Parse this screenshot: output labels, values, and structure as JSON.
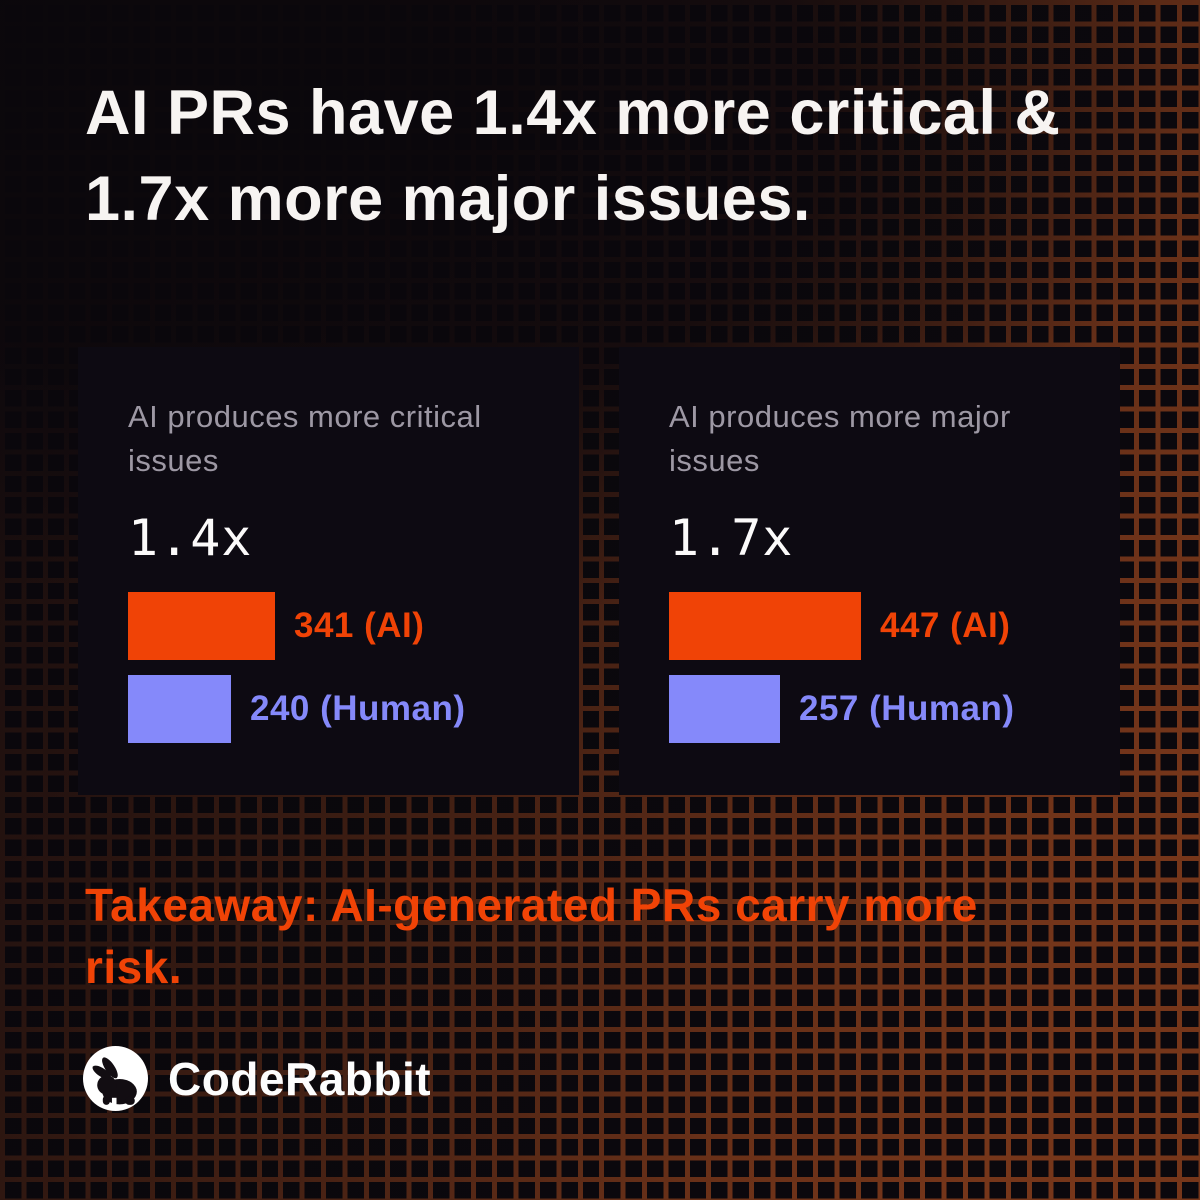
{
  "header": {
    "title": "AI PRs have 1.4x more critical & 1.7x more major issues."
  },
  "chart_data": [
    {
      "type": "bar",
      "orientation": "horizontal",
      "title": "AI produces more critical issues",
      "multiplier": "1.4x",
      "categories": [
        "AI",
        "Human"
      ],
      "values": [
        341,
        240
      ],
      "labels": [
        "341 (AI)",
        "240 (Human)"
      ],
      "series_colors": {
        "AI": "#f04306",
        "Human": "#8589fa"
      },
      "axis": "none",
      "legend": "inline-right"
    },
    {
      "type": "bar",
      "orientation": "horizontal",
      "title": "AI produces more major issues",
      "multiplier": "1.7x",
      "categories": [
        "AI",
        "Human"
      ],
      "values": [
        447,
        257
      ],
      "labels": [
        "447 (AI)",
        "257 (Human)"
      ],
      "series_colors": {
        "AI": "#f04306",
        "Human": "#8589fa"
      },
      "axis": "none",
      "legend": "inline-right"
    }
  ],
  "footer": {
    "takeaway": "Takeaway: AI-generated PRs carry more risk.",
    "brand": "CodeRabbit"
  },
  "theme": {
    "background": "#0b080d",
    "grid_line": "#76361a",
    "card_background": "#0d0a12",
    "title_color": "#f7f4f2",
    "muted_label_color": "#9d98a4",
    "accent_ai": "#f04306",
    "accent_human": "#8589fa"
  },
  "icons": [
    {
      "name": "coderabbit-rabbit-icon",
      "description": "white circle with black rabbit silhouette"
    }
  ]
}
